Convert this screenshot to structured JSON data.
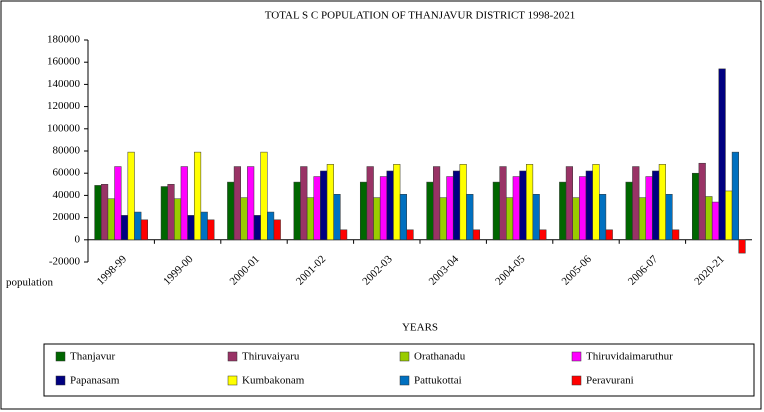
{
  "chart_data": {
    "type": "bar",
    "title": "TOTAL S C POPULATION OF THANJAVUR DISTRICT 1998-2021",
    "x_label": "YEARS",
    "y_label": "population",
    "categories": [
      "1998-99",
      "1999-00",
      "2000-01",
      "2001-02",
      "2002-03",
      "2003-04",
      "2004-05",
      "2005-06",
      "2006-07",
      "2020-21"
    ],
    "series": [
      {
        "name": "Thanjavur",
        "color": "#006600",
        "values": [
          49000,
          48000,
          52000,
          52000,
          52000,
          52000,
          52000,
          52000,
          52000,
          60000
        ]
      },
      {
        "name": "Thiruvaiyaru",
        "color": "#993366",
        "values": [
          50000,
          50000,
          66000,
          66000,
          66000,
          66000,
          66000,
          66000,
          66000,
          69000
        ]
      },
      {
        "name": "Orathanadu",
        "color": "#99cc00",
        "values": [
          37000,
          37000,
          38000,
          38000,
          38000,
          38000,
          38000,
          38000,
          38000,
          39000
        ]
      },
      {
        "name": "Thiruvidaimaruthur",
        "color": "#ff00ff",
        "values": [
          66000,
          66000,
          66000,
          57000,
          57000,
          57000,
          57000,
          57000,
          57000,
          34000
        ]
      },
      {
        "name": "Papanasam",
        "color": "#000080",
        "values": [
          22000,
          22000,
          22000,
          62000,
          62000,
          62000,
          62000,
          62000,
          62000,
          154000
        ]
      },
      {
        "name": "Kumbakonam",
        "color": "#ffff00",
        "values": [
          79000,
          79000,
          79000,
          68000,
          68000,
          68000,
          68000,
          68000,
          68000,
          44000
        ]
      },
      {
        "name": "Pattukottai",
        "color": "#0070c0",
        "values": [
          25000,
          25000,
          25000,
          41000,
          41000,
          41000,
          41000,
          41000,
          41000,
          79000
        ]
      },
      {
        "name": "Peravurani",
        "color": "#ff0000",
        "values": [
          18000,
          18000,
          18000,
          9000,
          9000,
          9000,
          9000,
          9000,
          9000,
          -12000
        ]
      }
    ],
    "ylim": [
      -20000,
      180000
    ],
    "yticks": [
      -20000,
      0,
      20000,
      40000,
      60000,
      80000,
      100000,
      120000,
      140000,
      160000,
      180000
    ],
    "legend": "bottom"
  }
}
